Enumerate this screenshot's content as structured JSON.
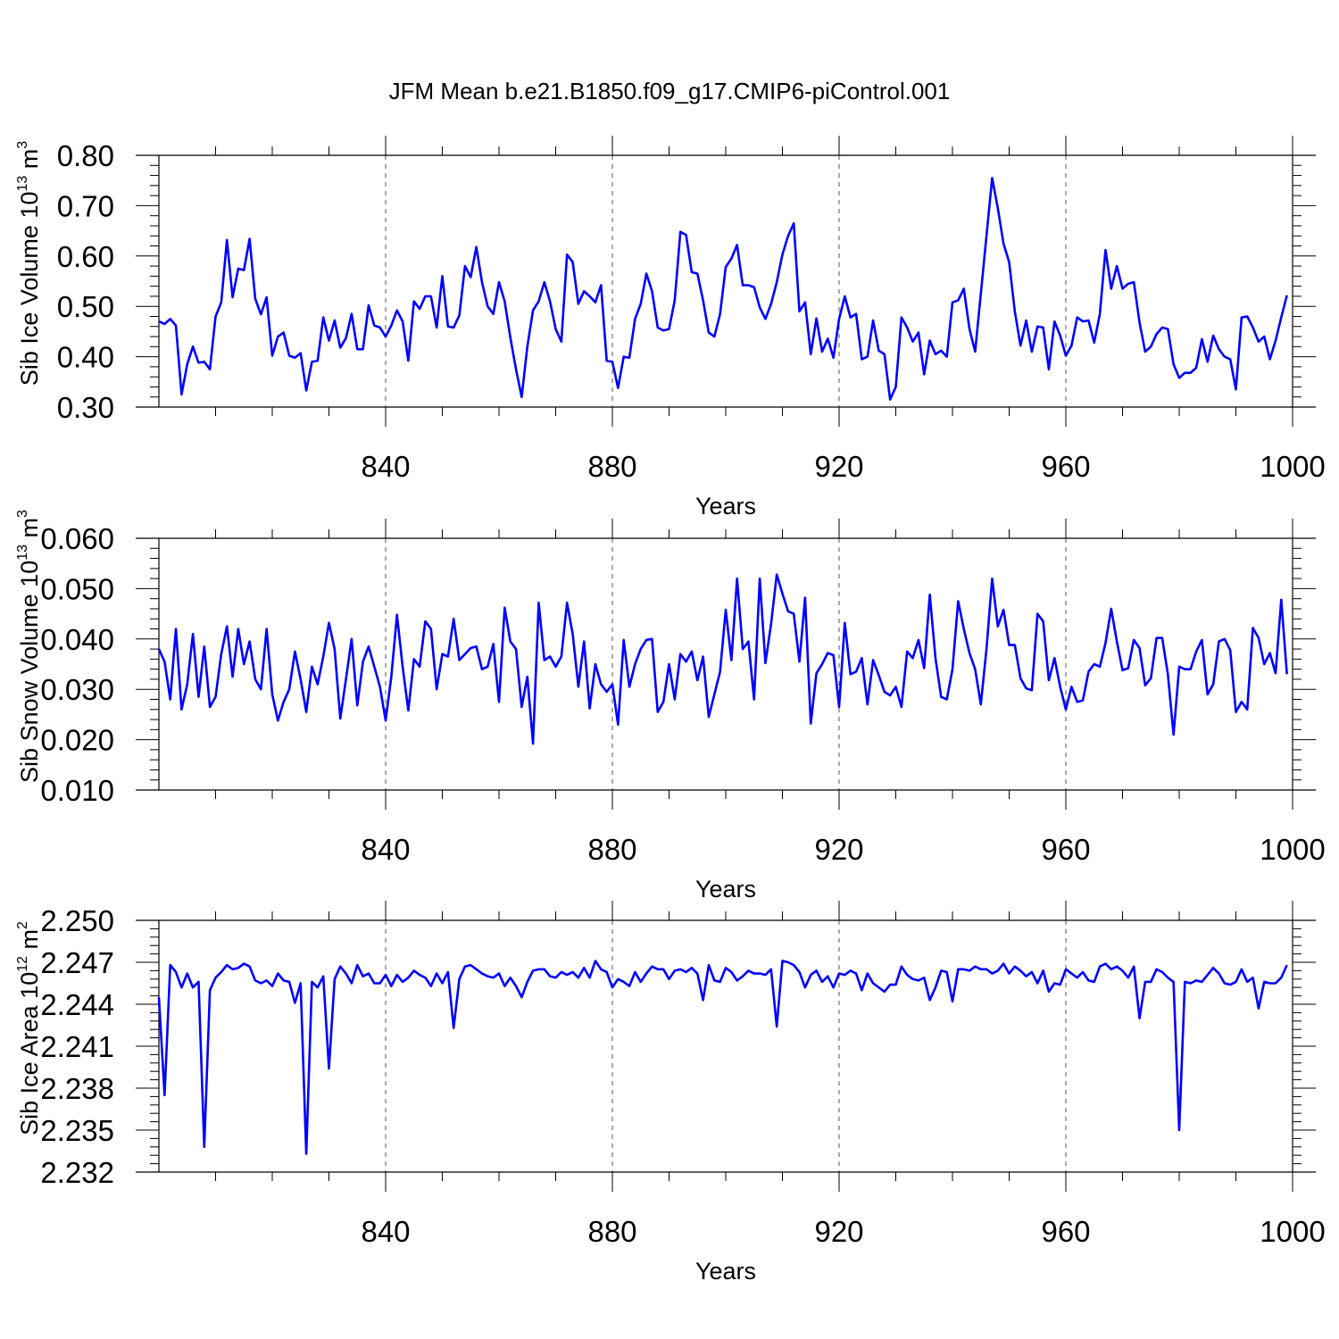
{
  "figure": {
    "title": "JFM Mean b.e21.B1850.f09_g17.CMIP6-piControl.001"
  },
  "colors": {
    "line": "#0000ff",
    "axis": "#000000",
    "grid": "#555555"
  },
  "chart_data": [
    {
      "type": "line",
      "xlabel": "Years",
      "ylabel": {
        "text": "Sib Ice Volume 10",
        "exp": "13",
        "unit": " m",
        "unit_exp": "3"
      },
      "xlim": [
        800,
        1000
      ],
      "ylim": [
        0.3,
        0.8
      ],
      "x_ticks": [
        "840",
        "880",
        "920",
        "960",
        "1000"
      ],
      "y_ticks": [
        "0.30",
        "0.40",
        "0.50",
        "0.60",
        "0.70",
        "0.80"
      ],
      "grid": "vertical dashed at major x ticks",
      "x_start": 800,
      "series": [
        {
          "values": [
            0.47,
            0.465,
            0.475,
            0.462,
            0.325,
            0.385,
            0.42,
            0.388,
            0.39,
            0.375,
            0.48,
            0.508,
            0.632,
            0.518,
            0.575,
            0.572,
            0.634,
            0.515,
            0.484,
            0.518,
            0.402,
            0.44,
            0.448,
            0.402,
            0.398,
            0.407,
            0.333,
            0.39,
            0.392,
            0.478,
            0.432,
            0.472,
            0.418,
            0.437,
            0.485,
            0.415,
            0.415,
            0.502,
            0.462,
            0.458,
            0.44,
            0.462,
            0.492,
            0.47,
            0.392,
            0.51,
            0.495,
            0.52,
            0.52,
            0.458,
            0.56,
            0.46,
            0.458,
            0.482,
            0.58,
            0.558,
            0.618,
            0.548,
            0.5,
            0.485,
            0.548,
            0.51,
            0.438,
            0.375,
            0.32,
            0.42,
            0.492,
            0.51,
            0.548,
            0.51,
            0.455,
            0.43,
            0.603,
            0.588,
            0.505,
            0.53,
            0.52,
            0.508,
            0.542,
            0.392,
            0.39,
            0.338,
            0.4,
            0.398,
            0.475,
            0.505,
            0.565,
            0.53,
            0.458,
            0.452,
            0.455,
            0.512,
            0.648,
            0.642,
            0.568,
            0.565,
            0.512,
            0.448,
            0.44,
            0.485,
            0.578,
            0.595,
            0.622,
            0.542,
            0.542,
            0.538,
            0.498,
            0.475,
            0.505,
            0.548,
            0.603,
            0.64,
            0.665,
            0.49,
            0.508,
            0.405,
            0.476,
            0.41,
            0.436,
            0.398,
            0.475,
            0.52,
            0.478,
            0.485,
            0.395,
            0.4,
            0.472,
            0.412,
            0.405,
            0.315,
            0.34,
            0.478,
            0.458,
            0.43,
            0.448,
            0.365,
            0.432,
            0.405,
            0.412,
            0.4,
            0.508,
            0.512,
            0.535,
            0.455,
            0.41,
            0.525,
            0.64,
            0.755,
            0.695,
            0.625,
            0.588,
            0.49,
            0.422,
            0.472,
            0.41,
            0.46,
            0.458,
            0.375,
            0.47,
            0.442,
            0.402,
            0.422,
            0.478,
            0.47,
            0.472,
            0.428,
            0.485,
            0.612,
            0.535,
            0.58,
            0.535,
            0.545,
            0.548,
            0.468,
            0.41,
            0.42,
            0.445,
            0.458,
            0.455,
            0.385,
            0.358,
            0.368,
            0.368,
            0.378,
            0.435,
            0.39,
            0.442,
            0.415,
            0.4,
            0.395,
            0.335,
            0.478,
            0.48,
            0.458,
            0.43,
            0.44,
            0.395,
            0.432,
            0.478,
            0.522
          ]
        }
      ]
    },
    {
      "type": "line",
      "xlabel": "Years",
      "ylabel": {
        "text": "Sib Snow Volume 10",
        "exp": "13",
        "unit": " m",
        "unit_exp": "3"
      },
      "xlim": [
        800,
        1000
      ],
      "ylim": [
        0.01,
        0.06
      ],
      "x_ticks": [
        "840",
        "880",
        "920",
        "960",
        "1000"
      ],
      "y_ticks": [
        "0.010",
        "0.020",
        "0.030",
        "0.040",
        "0.050",
        "0.060"
      ],
      "grid": "vertical dashed at major x ticks",
      "x_start": 800,
      "series": [
        {
          "values": [
            0.038,
            0.0355,
            0.028,
            0.042,
            0.026,
            0.031,
            0.041,
            0.0285,
            0.0385,
            0.0265,
            0.0285,
            0.037,
            0.0425,
            0.0325,
            0.042,
            0.035,
            0.0395,
            0.032,
            0.03,
            0.042,
            0.029,
            0.0238,
            0.0275,
            0.03,
            0.0375,
            0.032,
            0.0255,
            0.0345,
            0.031,
            0.0365,
            0.0432,
            0.038,
            0.0242,
            0.032,
            0.04,
            0.0268,
            0.0355,
            0.0385,
            0.0345,
            0.0305,
            0.0238,
            0.0325,
            0.0448,
            0.0345,
            0.0258,
            0.036,
            0.0345,
            0.0435,
            0.042,
            0.03,
            0.037,
            0.0365,
            0.044,
            0.0358,
            0.037,
            0.0382,
            0.0385,
            0.034,
            0.0345,
            0.039,
            0.0275,
            0.0462,
            0.0395,
            0.038,
            0.0265,
            0.0325,
            0.0192,
            0.0472,
            0.0358,
            0.0365,
            0.0345,
            0.0365,
            0.0472,
            0.041,
            0.0305,
            0.0395,
            0.0262,
            0.035,
            0.031,
            0.0295,
            0.031,
            0.023,
            0.0398,
            0.0305,
            0.035,
            0.038,
            0.0398,
            0.04,
            0.0255,
            0.0275,
            0.035,
            0.028,
            0.037,
            0.0355,
            0.0375,
            0.0318,
            0.0365,
            0.0245,
            0.029,
            0.0335,
            0.0458,
            0.0358,
            0.052,
            0.038,
            0.0395,
            0.028,
            0.052,
            0.0352,
            0.043,
            0.0528,
            0.049,
            0.0455,
            0.045,
            0.0355,
            0.0482,
            0.0232,
            0.0332,
            0.035,
            0.0372,
            0.0368,
            0.0265,
            0.0432,
            0.033,
            0.0335,
            0.0362,
            0.027,
            0.0358,
            0.0328,
            0.0295,
            0.0288,
            0.0305,
            0.0265,
            0.0375,
            0.0362,
            0.0398,
            0.0342,
            0.0488,
            0.0362,
            0.0285,
            0.028,
            0.034,
            0.0475,
            0.042,
            0.0372,
            0.034,
            0.027,
            0.038,
            0.052,
            0.0425,
            0.0458,
            0.0388,
            0.0388,
            0.0322,
            0.0302,
            0.0298,
            0.045,
            0.0435,
            0.0318,
            0.0362,
            0.0305,
            0.026,
            0.0305,
            0.0275,
            0.0278,
            0.0335,
            0.035,
            0.0345,
            0.0392,
            0.046,
            0.0395,
            0.0338,
            0.0342,
            0.0398,
            0.0382,
            0.0308,
            0.0322,
            0.0402,
            0.0402,
            0.033,
            0.021,
            0.0345,
            0.034,
            0.034,
            0.0375,
            0.0398,
            0.029,
            0.031,
            0.0395,
            0.04,
            0.0378,
            0.0255,
            0.0275,
            0.026,
            0.0422,
            0.0402,
            0.035,
            0.0372,
            0.0332,
            0.0478,
            0.033
          ]
        }
      ]
    },
    {
      "type": "line",
      "xlabel": "Years",
      "ylabel": {
        "text": "Sib Ice Area 10",
        "exp": "12",
        "unit": " m",
        "unit_exp": "2"
      },
      "xlim": [
        800,
        1000
      ],
      "ylim": [
        2.232,
        2.25
      ],
      "x_ticks": [
        "840",
        "880",
        "920",
        "960",
        "1000"
      ],
      "y_ticks": [
        "2.232",
        "2.235",
        "2.238",
        "2.241",
        "2.244",
        "2.247",
        "2.250"
      ],
      "grid": "vertical dashed at major x ticks",
      "x_start": 800,
      "series": [
        {
          "values": [
            2.2445,
            2.2375,
            2.2468,
            2.2463,
            2.2452,
            2.2462,
            2.2452,
            2.2456,
            2.2338,
            2.245,
            2.2459,
            2.2463,
            2.2468,
            2.2465,
            2.2466,
            2.2469,
            2.2467,
            2.2457,
            2.2455,
            2.2457,
            2.2453,
            2.2462,
            2.2457,
            2.2456,
            2.2441,
            2.2455,
            2.2333,
            2.2456,
            2.2452,
            2.246,
            2.2394,
            2.2458,
            2.2467,
            2.2462,
            2.2455,
            2.2468,
            2.246,
            2.2462,
            2.2455,
            2.2455,
            2.2461,
            2.2453,
            2.2461,
            2.2456,
            2.2459,
            2.2464,
            2.2461,
            2.2459,
            2.2453,
            2.2462,
            2.2455,
            2.2463,
            2.2423,
            2.2458,
            2.2467,
            2.2468,
            2.2465,
            2.2462,
            2.246,
            2.2459,
            2.2462,
            2.2453,
            2.2459,
            2.2453,
            2.2445,
            2.2456,
            2.2464,
            2.2465,
            2.2465,
            2.246,
            2.2459,
            2.2463,
            2.2461,
            2.2463,
            2.2459,
            2.2466,
            2.2459,
            2.2471,
            2.2465,
            2.2463,
            2.2452,
            2.2458,
            2.2456,
            2.2453,
            2.2463,
            2.2456,
            2.2462,
            2.2467,
            2.2465,
            2.2465,
            2.2458,
            2.2464,
            2.2465,
            2.2463,
            2.2466,
            2.2462,
            2.2443,
            2.2468,
            2.2457,
            2.2456,
            2.2466,
            2.2463,
            2.2457,
            2.246,
            2.2464,
            2.2462,
            2.2462,
            2.2461,
            2.2465,
            2.2424,
            2.2471,
            2.247,
            2.2468,
            2.2463,
            2.2452,
            2.2461,
            2.2464,
            2.2456,
            2.246,
            2.2452,
            2.2462,
            2.2461,
            2.2464,
            2.2462,
            2.245,
            2.2462,
            2.2455,
            2.2452,
            2.2449,
            2.2454,
            2.2454,
            2.2467,
            2.2461,
            2.2458,
            2.2457,
            2.2459,
            2.2443,
            2.2452,
            2.2464,
            2.2463,
            2.2442,
            2.2465,
            2.2465,
            2.2464,
            2.2467,
            2.2465,
            2.2465,
            2.2462,
            2.2464,
            2.2469,
            2.2462,
            2.2467,
            2.2464,
            2.246,
            2.2463,
            2.2455,
            2.2464,
            2.2449,
            2.2455,
            2.2454,
            2.2465,
            2.2462,
            2.2459,
            2.2463,
            2.2457,
            2.2456,
            2.2467,
            2.2469,
            2.2465,
            2.2467,
            2.2464,
            2.2459,
            2.2467,
            2.243,
            2.2456,
            2.2456,
            2.2465,
            2.2463,
            2.2459,
            2.2456,
            2.235,
            2.2456,
            2.2455,
            2.2457,
            2.2456,
            2.2461,
            2.2466,
            2.2462,
            2.2455,
            2.2454,
            2.2456,
            2.2465,
            2.2456,
            2.2459,
            2.2437,
            2.2456,
            2.2455,
            2.2455,
            2.2459,
            2.2468
          ]
        }
      ]
    }
  ]
}
